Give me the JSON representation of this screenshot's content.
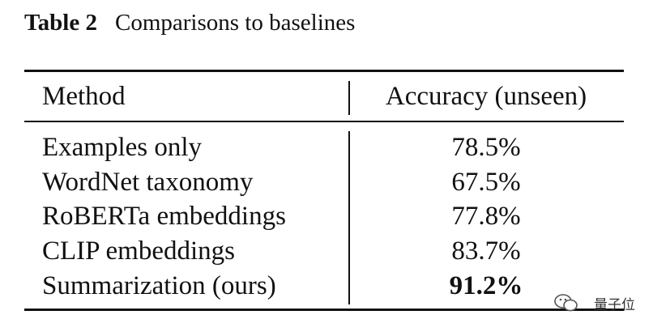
{
  "caption": {
    "label": "Table 2",
    "title": "Comparisons to baselines"
  },
  "table": {
    "header": [
      "Method",
      "Accuracy (unseen)"
    ],
    "rows": [
      [
        "Examples only",
        "78.5%"
      ],
      [
        "WordNet taxonomy",
        "67.5%"
      ],
      [
        "RoBERTa embeddings",
        "77.8%"
      ],
      [
        "CLIP embeddings",
        "83.7%"
      ],
      [
        "Summarization (ours)",
        "91.2%"
      ]
    ]
  },
  "watermark": "量子位"
}
